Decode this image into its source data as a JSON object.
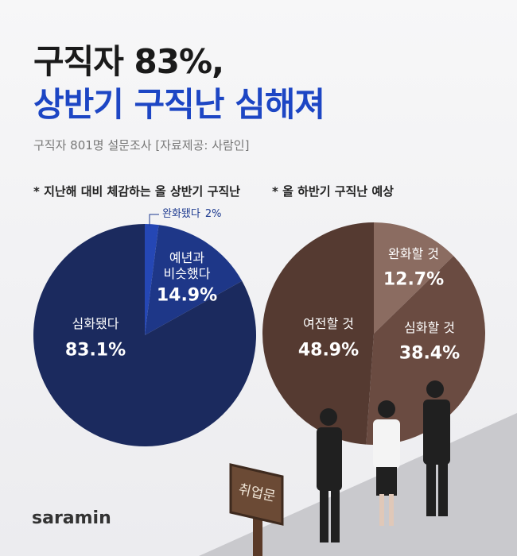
{
  "header": {
    "title": [
      "구직자 83%,",
      "상반기 구직난 심해져"
    ],
    "source": "구직자 801명 설문조사 [자료제공: 사람인]"
  },
  "chart_data": [
    {
      "type": "pie",
      "title": "* 지난해 대비 체감하는 올 상반기 구직난",
      "categories": [
        "완화됐다",
        "예년과\n비슷했다",
        "심화됐다"
      ],
      "values": [
        2,
        14.9,
        83.1
      ],
      "value_labels": [
        "2%",
        "14.9%",
        "83.1%"
      ],
      "colors": [
        "#2547b5",
        "#1e3788",
        "#1b2a5e"
      ]
    },
    {
      "type": "pie",
      "title": "* 올 하반기 구직난 예상",
      "categories": [
        "완화할 것",
        "심화할 것",
        "여전할 것"
      ],
      "values": [
        12.7,
        38.4,
        48.9
      ],
      "value_labels": [
        "12.7%",
        "38.4%",
        "48.9%"
      ],
      "colors": [
        "#8b6c61",
        "#6a4b41",
        "#553a31"
      ]
    }
  ],
  "illustration": {
    "sign": "취업문"
  },
  "footer": {
    "brand": "saramin"
  }
}
